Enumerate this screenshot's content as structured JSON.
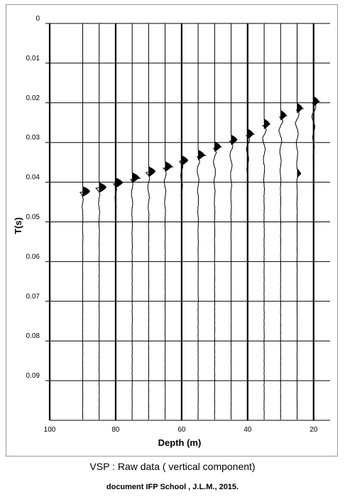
{
  "chart_data": {
    "type": "line",
    "subtype": "vsp-wiggle-traces",
    "xlabel": "Depth (m)",
    "ylabel": "T(s)",
    "x_axis_direction": "reversed",
    "xlim": [
      100,
      15
    ],
    "ylim": [
      0,
      0.1
    ],
    "x_tick_labels": [
      "100",
      "80",
      "60",
      "40",
      "20"
    ],
    "y_tick_labels": [
      "0",
      "0.01",
      "0.02",
      "0.03",
      "0.04",
      "0.05",
      "0.06",
      "0.07",
      "0.08",
      "0.09"
    ],
    "grid": true,
    "trace_depths": [
      90,
      85,
      80,
      75,
      70,
      65,
      60,
      55,
      50,
      45,
      40,
      35,
      30,
      25,
      20
    ],
    "first_break_times": [
      0.0425,
      0.0415,
      0.0403,
      0.039,
      0.0375,
      0.0362,
      0.0347,
      0.0333,
      0.0312,
      0.0295,
      0.028,
      0.0255,
      0.0233,
      0.0215,
      0.0198
    ],
    "late_arrival": {
      "depth": 25,
      "time": 0.0378
    },
    "colors": {
      "trace": "#000000",
      "grid": "#000000",
      "frame": "#9a9a9a"
    }
  },
  "caption": {
    "title": "VSP : Raw data ( vertical component)",
    "credit": "document IFP School , J.L.M., 2015."
  }
}
